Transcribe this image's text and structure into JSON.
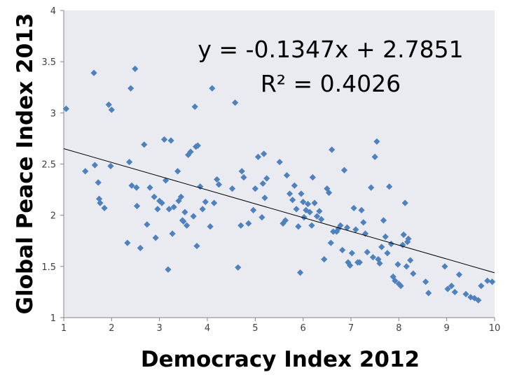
{
  "chart_data": {
    "type": "scatter",
    "title": "",
    "xlabel": "Democracy Index 2012",
    "ylabel": "Global Peace Index 2013",
    "xlim": [
      1,
      10
    ],
    "ylim": [
      1,
      4
    ],
    "x_ticks": [
      "1",
      "2",
      "3",
      "4",
      "5",
      "6",
      "7",
      "8",
      "9",
      "10"
    ],
    "y_ticks": [
      "1",
      "1.5",
      "2",
      "2.5",
      "3",
      "3.5",
      "4"
    ],
    "grid": false,
    "legend": "none",
    "marker_color": "#4f81bd",
    "trendline_color": "#000000",
    "plot_background": "#e9ebf0",
    "annotations": {
      "equation": "y = -0.1347x + 2.7851",
      "r_squared": "R² = 0.4026"
    },
    "trendline": {
      "slope": -0.1347,
      "intercept": 2.7851
    },
    "series": [
      {
        "points": [
          [
            1.05,
            3.04
          ],
          [
            1.45,
            2.43
          ],
          [
            1.63,
            3.39
          ],
          [
            1.65,
            2.49
          ],
          [
            1.72,
            2.32
          ],
          [
            1.74,
            2.16
          ],
          [
            1.76,
            2.12
          ],
          [
            1.85,
            2.07
          ],
          [
            1.94,
            3.08
          ],
          [
            1.98,
            2.48
          ],
          [
            2.0,
            3.03
          ],
          [
            2.33,
            1.73
          ],
          [
            2.37,
            2.52
          ],
          [
            2.4,
            3.24
          ],
          [
            2.42,
            2.29
          ],
          [
            2.49,
            3.43
          ],
          [
            2.52,
            2.27
          ],
          [
            2.53,
            2.09
          ],
          [
            2.6,
            1.68
          ],
          [
            2.68,
            2.69
          ],
          [
            2.74,
            1.91
          ],
          [
            2.8,
            2.27
          ],
          [
            2.89,
            2.18
          ],
          [
            2.92,
            1.78
          ],
          [
            2.96,
            2.06
          ],
          [
            3.0,
            2.14
          ],
          [
            3.05,
            2.12
          ],
          [
            3.1,
            2.74
          ],
          [
            3.13,
            2.34
          ],
          [
            3.18,
            1.47
          ],
          [
            3.2,
            2.06
          ],
          [
            3.24,
            2.73
          ],
          [
            3.27,
            1.82
          ],
          [
            3.3,
            2.08
          ],
          [
            3.38,
            2.43
          ],
          [
            3.4,
            2.14
          ],
          [
            3.45,
            2.18
          ],
          [
            3.48,
            1.95
          ],
          [
            3.5,
            1.94
          ],
          [
            3.53,
            2.03
          ],
          [
            3.57,
            1.9
          ],
          [
            3.6,
            2.59
          ],
          [
            3.65,
            2.62
          ],
          [
            3.71,
            1.99
          ],
          [
            3.74,
            3.06
          ],
          [
            3.76,
            2.67
          ],
          [
            3.78,
            1.7
          ],
          [
            3.8,
            2.68
          ],
          [
            3.85,
            2.28
          ],
          [
            3.9,
            2.06
          ],
          [
            3.96,
            2.13
          ],
          [
            4.06,
            1.89
          ],
          [
            4.1,
            3.24
          ],
          [
            4.14,
            2.12
          ],
          [
            4.2,
            2.35
          ],
          [
            4.24,
            2.3
          ],
          [
            4.52,
            2.26
          ],
          [
            4.58,
            3.1
          ],
          [
            4.64,
            1.49
          ],
          [
            4.7,
            1.9
          ],
          [
            4.72,
            2.43
          ],
          [
            4.76,
            2.37
          ],
          [
            4.86,
            1.92
          ],
          [
            4.96,
            2.05
          ],
          [
            5.0,
            2.26
          ],
          [
            5.06,
            2.57
          ],
          [
            5.14,
            1.98
          ],
          [
            5.16,
            2.31
          ],
          [
            5.18,
            2.6
          ],
          [
            5.2,
            2.17
          ],
          [
            5.24,
            2.36
          ],
          [
            5.51,
            2.52
          ],
          [
            5.58,
            1.92
          ],
          [
            5.63,
            1.95
          ],
          [
            5.66,
            2.39
          ],
          [
            5.72,
            2.21
          ],
          [
            5.78,
            2.15
          ],
          [
            5.82,
            2.29
          ],
          [
            5.86,
            2.06
          ],
          [
            5.9,
            1.89
          ],
          [
            5.94,
            1.44
          ],
          [
            5.96,
            2.21
          ],
          [
            6.0,
            2.13
          ],
          [
            6.02,
            1.98
          ],
          [
            6.06,
            2.05
          ],
          [
            6.1,
            2.11
          ],
          [
            6.14,
            2.03
          ],
          [
            6.18,
            1.9
          ],
          [
            6.2,
            2.37
          ],
          [
            6.24,
            2.12
          ],
          [
            6.29,
            1.99
          ],
          [
            6.34,
            2.04
          ],
          [
            6.38,
            1.96
          ],
          [
            6.44,
            1.57
          ],
          [
            6.5,
            2.26
          ],
          [
            6.54,
            2.22
          ],
          [
            6.58,
            1.73
          ],
          [
            6.6,
            2.64
          ],
          [
            6.63,
            1.84
          ],
          [
            6.7,
            1.84
          ],
          [
            6.74,
            1.87
          ],
          [
            6.78,
            1.9
          ],
          [
            6.82,
            1.66
          ],
          [
            6.86,
            2.44
          ],
          [
            6.92,
            1.88
          ],
          [
            6.94,
            1.54
          ],
          [
            6.98,
            1.51
          ],
          [
            7.02,
            1.63
          ],
          [
            7.06,
            2.07
          ],
          [
            7.1,
            1.86
          ],
          [
            7.14,
            1.54
          ],
          [
            7.18,
            1.54
          ],
          [
            7.22,
            2.05
          ],
          [
            7.26,
            1.93
          ],
          [
            7.3,
            1.82
          ],
          [
            7.34,
            1.64
          ],
          [
            7.42,
            2.27
          ],
          [
            7.46,
            1.59
          ],
          [
            7.5,
            2.57
          ],
          [
            7.54,
            2.72
          ],
          [
            7.57,
            1.57
          ],
          [
            7.6,
            1.53
          ],
          [
            7.64,
            1.69
          ],
          [
            7.68,
            1.95
          ],
          [
            7.72,
            1.79
          ],
          [
            7.76,
            1.63
          ],
          [
            7.8,
            2.28
          ],
          [
            7.84,
            1.72
          ],
          [
            7.88,
            1.4
          ],
          [
            7.92,
            1.36
          ],
          [
            7.98,
            1.52
          ],
          [
            8.0,
            1.33
          ],
          [
            8.04,
            1.31
          ],
          [
            8.08,
            1.71
          ],
          [
            8.1,
            1.81
          ],
          [
            8.13,
            2.12
          ],
          [
            8.16,
            1.5
          ],
          [
            8.18,
            1.74
          ],
          [
            8.2,
            1.77
          ],
          [
            8.24,
            1.56
          ],
          [
            8.3,
            1.43
          ],
          [
            8.56,
            1.35
          ],
          [
            8.62,
            1.24
          ],
          [
            8.96,
            1.5
          ],
          [
            9.02,
            1.28
          ],
          [
            9.1,
            1.31
          ],
          [
            9.17,
            1.25
          ],
          [
            9.26,
            1.42
          ],
          [
            9.4,
            1.23
          ],
          [
            9.5,
            1.2
          ],
          [
            9.58,
            1.19
          ],
          [
            9.66,
            1.17
          ],
          [
            9.72,
            1.31
          ],
          [
            9.85,
            1.36
          ],
          [
            9.95,
            1.35
          ]
        ]
      }
    ]
  }
}
